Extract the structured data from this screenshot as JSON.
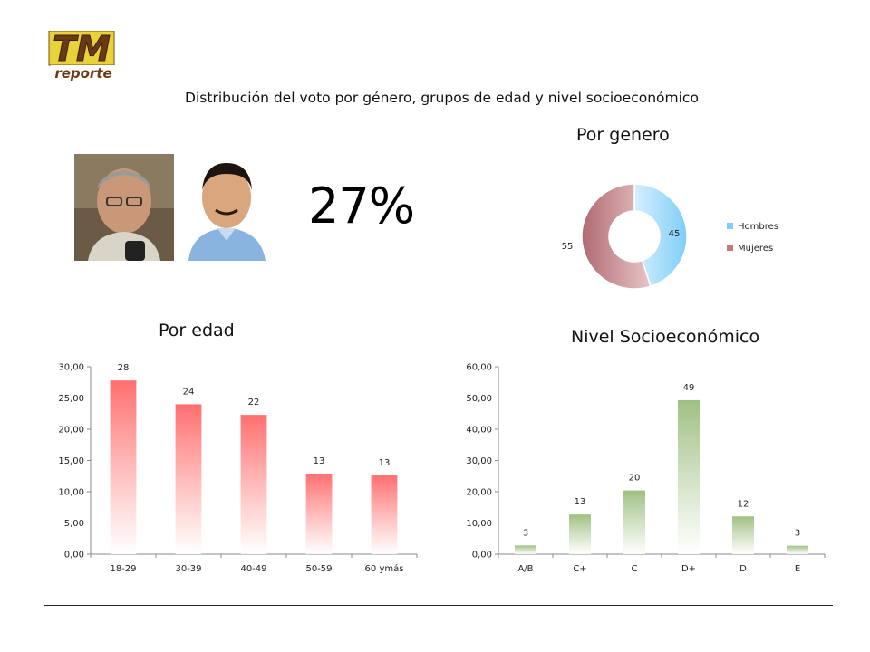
{
  "header": {
    "logo_text": "TM",
    "logo_subtext": "reporte",
    "subtitle": "Distribución del voto por género, grupos de edad y nivel socioeconómico"
  },
  "highlight": {
    "percent": "27%"
  },
  "colors": {
    "hombres": "#7ecef8",
    "mujeres": "#c07b80",
    "edad": "#ff6f6f",
    "nivel": "#9fc082"
  },
  "chart_data": [
    {
      "type": "pie",
      "title": "Por genero",
      "categories": [
        "Hombres",
        "Mujeres"
      ],
      "values": [
        45,
        55
      ],
      "data_labels": [
        "45",
        "55"
      ],
      "legend": [
        "Hombres",
        "Mujeres"
      ],
      "legend_position": "right"
    },
    {
      "type": "bar",
      "title": "Por edad",
      "categories": [
        "18-29",
        "30-39",
        "40-49",
        "50-59",
        "60 ymás"
      ],
      "values": [
        27.8,
        24.0,
        22.3,
        12.9,
        12.6
      ],
      "data_labels": [
        "28",
        "24",
        "22",
        "13",
        "13"
      ],
      "ylim": [
        0,
        30
      ],
      "yticks": [
        "0,00",
        "5,00",
        "10,00",
        "15,00",
        "20,00",
        "25,00",
        "30,00"
      ],
      "grid": false
    },
    {
      "type": "bar",
      "title": "Nivel Socioeconómico",
      "categories": [
        "A/B",
        "C+",
        "C",
        "D+",
        "D",
        "E"
      ],
      "values": [
        2.8,
        12.7,
        20.4,
        49.3,
        12.1,
        2.7
      ],
      "data_labels": [
        "3",
        "13",
        "20",
        "49",
        "12",
        "3"
      ],
      "ylim": [
        0,
        60
      ],
      "yticks": [
        "0,00",
        "10,00",
        "20,00",
        "30,00",
        "40,00",
        "50,00",
        "60,00"
      ],
      "grid": false
    }
  ]
}
